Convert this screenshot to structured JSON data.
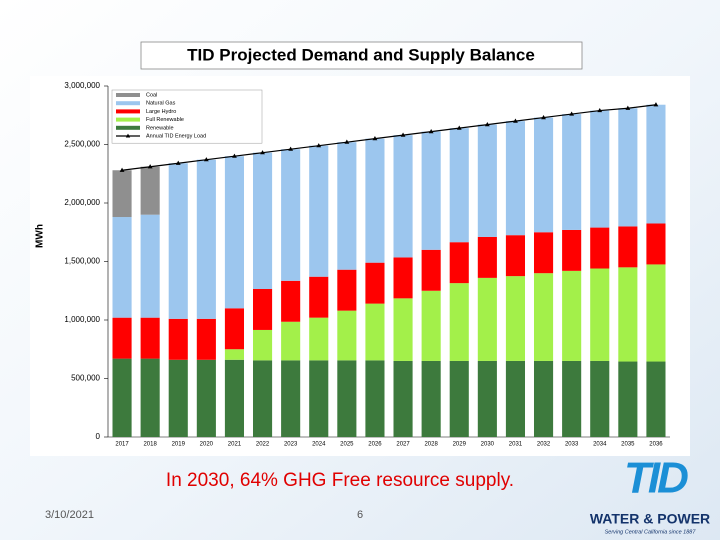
{
  "chart_data": {
    "type": "stacked_bar",
    "title": "TID Projected Demand and Supply Balance",
    "y_label": "MWh",
    "categories": [
      "2017",
      "2018",
      "2019",
      "2020",
      "2021",
      "2022",
      "2023",
      "2024",
      "2025",
      "2026",
      "2027",
      "2028",
      "2029",
      "2030",
      "2031",
      "2032",
      "2033",
      "2034",
      "2035",
      "2036"
    ],
    "series": [
      {
        "name": "Renewable",
        "color": "#3d7a3d",
        "values": [
          670000,
          670000,
          660000,
          660000,
          660000,
          655000,
          655000,
          655000,
          655000,
          655000,
          650000,
          650000,
          650000,
          650000,
          650000,
          650000,
          650000,
          650000,
          645000,
          645000
        ]
      },
      {
        "name": "Full Renewable",
        "color": "#a3f04a",
        "values": [
          0,
          0,
          0,
          0,
          90000,
          260000,
          330000,
          365000,
          425000,
          485000,
          535000,
          600000,
          665000,
          710000,
          725000,
          750000,
          770000,
          790000,
          805000,
          830000
        ]
      },
      {
        "name": "Large Hydro",
        "color": "#ff0000",
        "values": [
          350000,
          350000,
          350000,
          350000,
          350000,
          350000,
          350000,
          350000,
          350000,
          350000,
          350000,
          350000,
          350000,
          350000,
          350000,
          350000,
          350000,
          350000,
          350000,
          350000
        ]
      },
      {
        "name": "Natural Gas",
        "color": "#9cc6ee",
        "values": [
          860000,
          880000,
          1330000,
          1360000,
          1300000,
          1165000,
          1125000,
          1120000,
          1090000,
          1060000,
          1045000,
          1010000,
          975000,
          960000,
          975000,
          980000,
          990000,
          1000000,
          1010000,
          1015000
        ]
      },
      {
        "name": "Coal",
        "color": "#8f8f8f",
        "values": [
          400000,
          410000,
          0,
          0,
          0,
          0,
          0,
          0,
          0,
          0,
          0,
          0,
          0,
          0,
          0,
          0,
          0,
          0,
          0,
          0
        ]
      }
    ],
    "load": {
      "name": "Annual TID Energy Load",
      "color": "#000000",
      "values": [
        2280000,
        2310000,
        2340000,
        2370000,
        2400000,
        2430000,
        2460000,
        2490000,
        2520000,
        2550000,
        2580000,
        2610000,
        2640000,
        2670000,
        2700000,
        2730000,
        2760000,
        2790000,
        2810000,
        2840000
      ]
    },
    "ylim": [
      0,
      3000000
    ],
    "yticks": [
      0,
      {
        "value": 500000,
        "label": "500,000"
      },
      {
        "value": 1000000,
        "label": "1,000,000"
      },
      {
        "value": 1500000,
        "label": "1,500,000"
      },
      {
        "value": 2000000,
        "label": "2,000,000"
      },
      {
        "value": 2500000,
        "label": "2,500,000"
      },
      {
        "value": 3000000,
        "label": "3,000,000"
      }
    ],
    "legend": "upper-left"
  },
  "slide": {
    "caption": "In 2030, 64% GHG Free resource supply.",
    "date": "3/10/2021",
    "page_number": "6",
    "logo": {
      "mark": "TID",
      "name": "WATER & POWER",
      "tagline": "Serving Central California since 1887"
    }
  }
}
